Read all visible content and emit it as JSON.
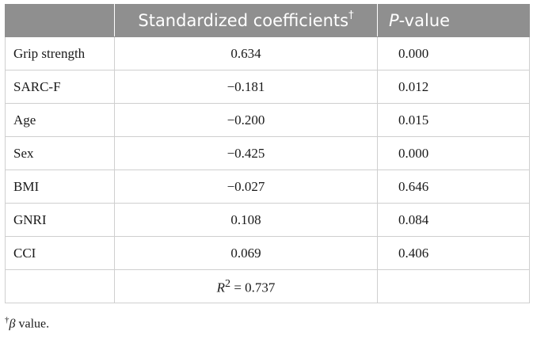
{
  "header": {
    "col1": "",
    "col2": "Standardized coefficients",
    "col2_mark": "†",
    "col3_italic": "P",
    "col3_rest": "-value"
  },
  "rows": [
    {
      "label": "Grip strength",
      "coef": "0.634",
      "p": "0.000"
    },
    {
      "label": "SARC-F",
      "coef": "−0.181",
      "p": "0.012"
    },
    {
      "label": "Age",
      "coef": "−0.200",
      "p": "0.015"
    },
    {
      "label": "Sex",
      "coef": "−0.425",
      "p": "0.000"
    },
    {
      "label": "BMI",
      "coef": "−0.027",
      "p": "0.646"
    },
    {
      "label": "GNRI",
      "coef": "0.108",
      "p": "0.084"
    },
    {
      "label": "CCI",
      "coef": "0.069",
      "p": "0.406"
    }
  ],
  "r2": {
    "symbol": "R",
    "exp": "2",
    "value": " = 0.737"
  },
  "footnote": {
    "mark": "†",
    "beta": "β",
    "text": " value."
  }
}
